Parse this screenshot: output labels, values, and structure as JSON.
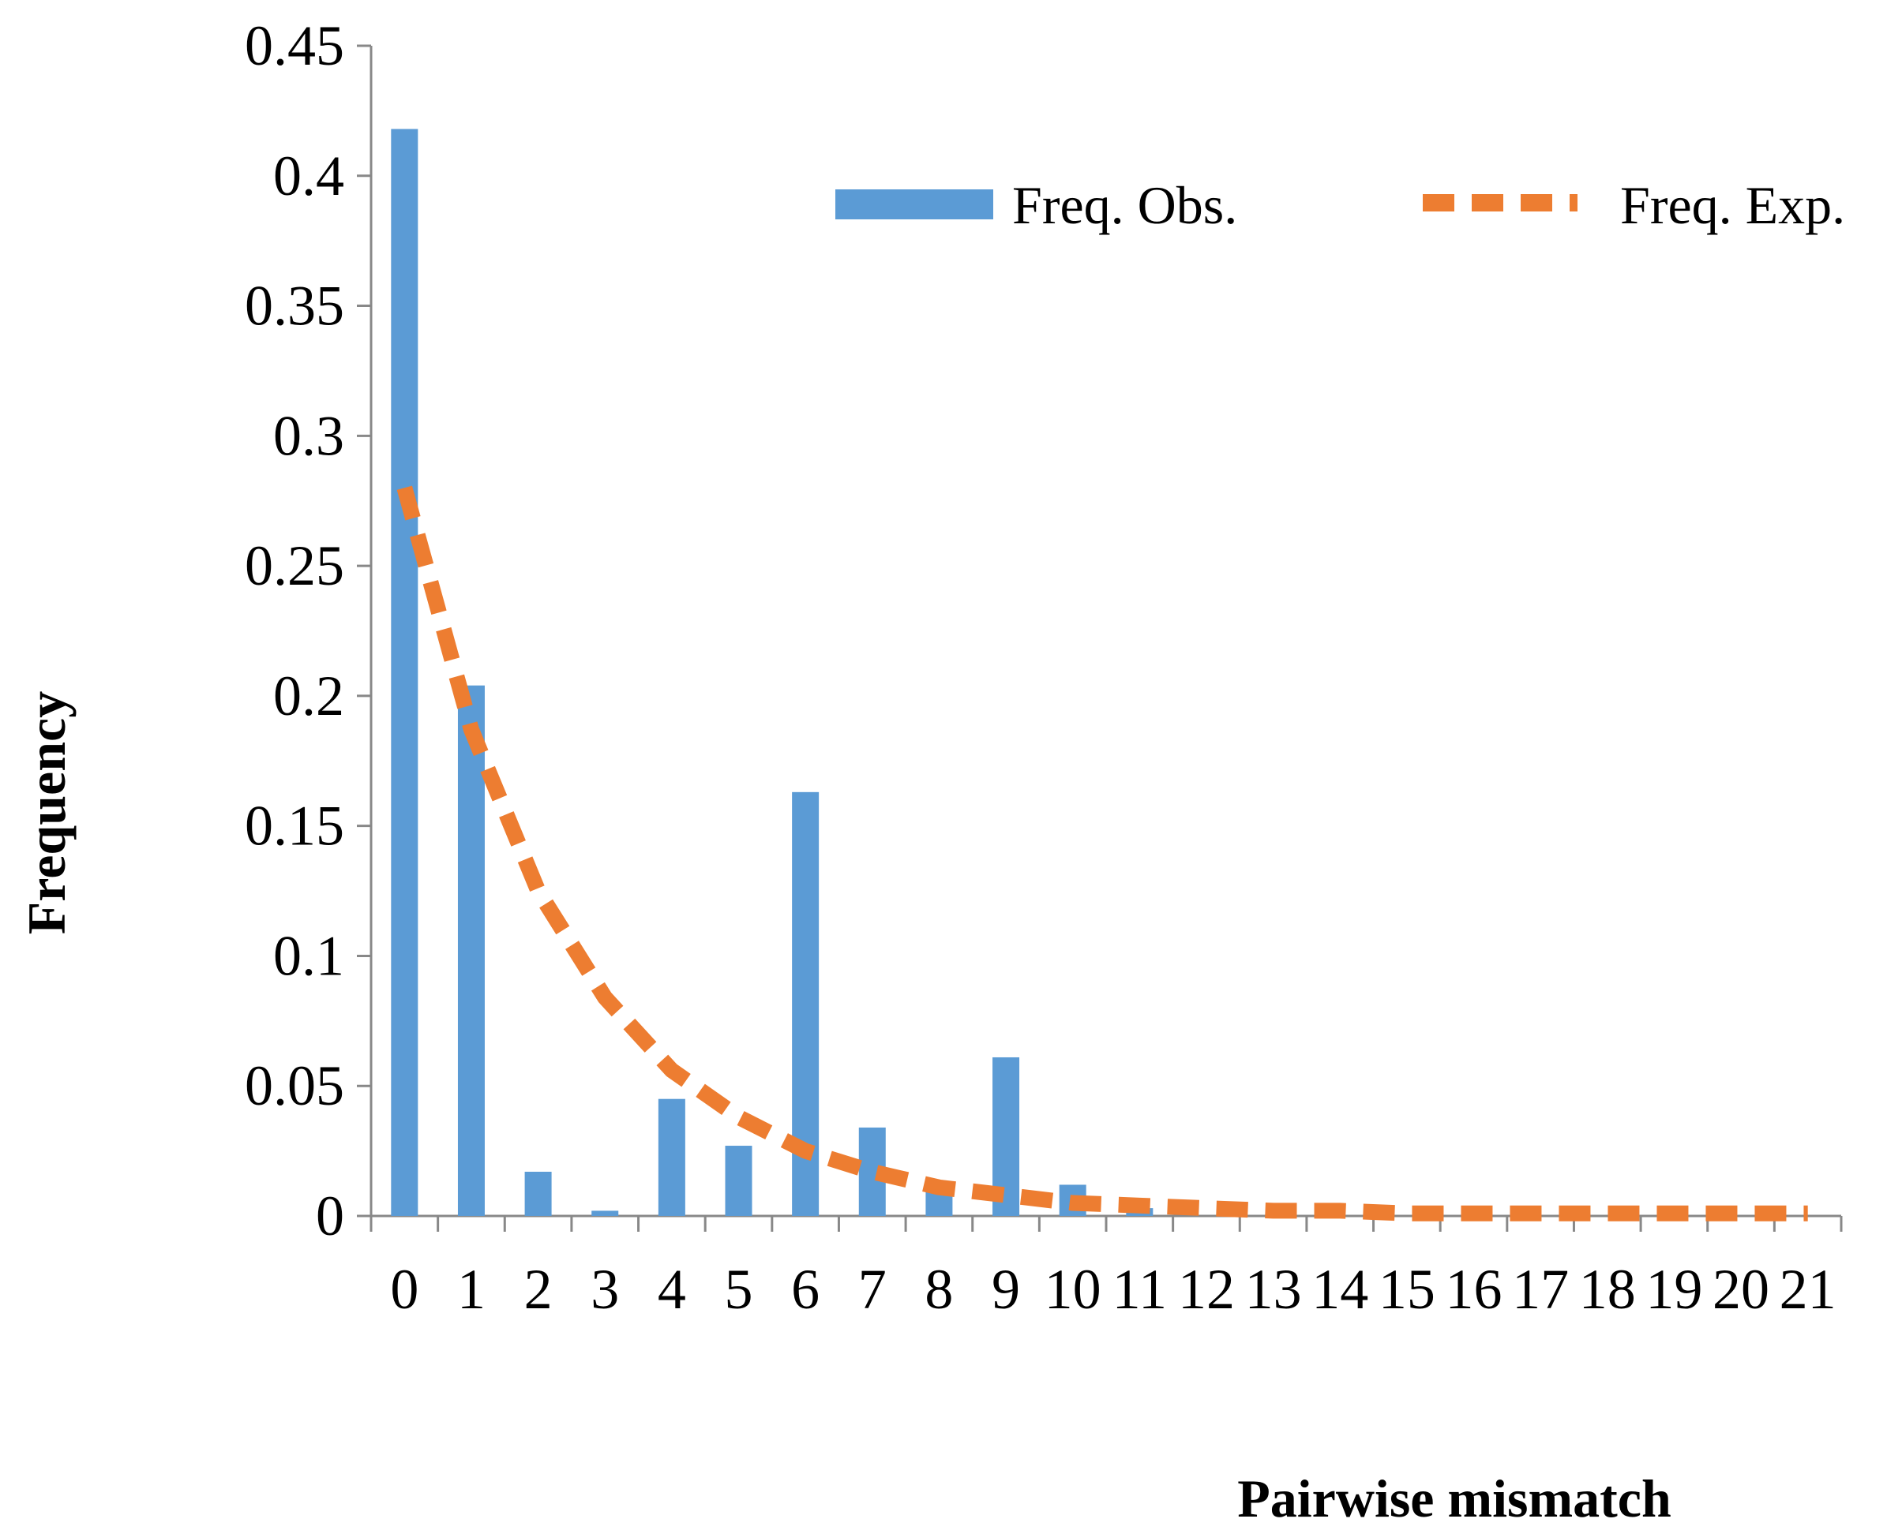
{
  "chart_data": {
    "type": "bar",
    "title": "",
    "xlabel": "Pairwise mismatch",
    "ylabel": "Frequency",
    "ylim": [
      0,
      0.45
    ],
    "yticks": [
      0,
      0.05,
      0.1,
      0.15,
      0.2,
      0.25,
      0.3,
      0.35,
      0.4,
      0.45
    ],
    "ytick_labels": [
      "0",
      "0.05",
      "0.1",
      "0.15",
      "0.2",
      "0.25",
      "0.3",
      "0.35",
      "0.4",
      "0.45"
    ],
    "categories": [
      "0",
      "1",
      "2",
      "3",
      "4",
      "5",
      "6",
      "7",
      "8",
      "9",
      "10",
      "11",
      "12",
      "13",
      "14",
      "15",
      "16",
      "17",
      "18",
      "19",
      "20",
      "21"
    ],
    "legend_position": "top-right",
    "grid": false,
    "series": [
      {
        "name": "Freq. Obs.",
        "kind": "bar",
        "color": "#5b9bd5",
        "values": [
          0.418,
          0.204,
          0.017,
          0.002,
          0.045,
          0.027,
          0.163,
          0.034,
          0.011,
          0.061,
          0.012,
          0.003,
          0,
          0,
          0,
          0,
          0,
          0,
          0,
          0,
          0,
          0
        ]
      },
      {
        "name": "Freq. Exp.",
        "kind": "line",
        "style": "dashed",
        "color": "#ed7d31",
        "values": [
          0.28,
          0.187,
          0.125,
          0.084,
          0.056,
          0.038,
          0.025,
          0.017,
          0.011,
          0.008,
          0.005,
          0.004,
          0.003,
          0.002,
          0.002,
          0.001,
          0.001,
          0.001,
          0.001,
          0.001,
          0.001,
          0.001
        ]
      }
    ]
  }
}
